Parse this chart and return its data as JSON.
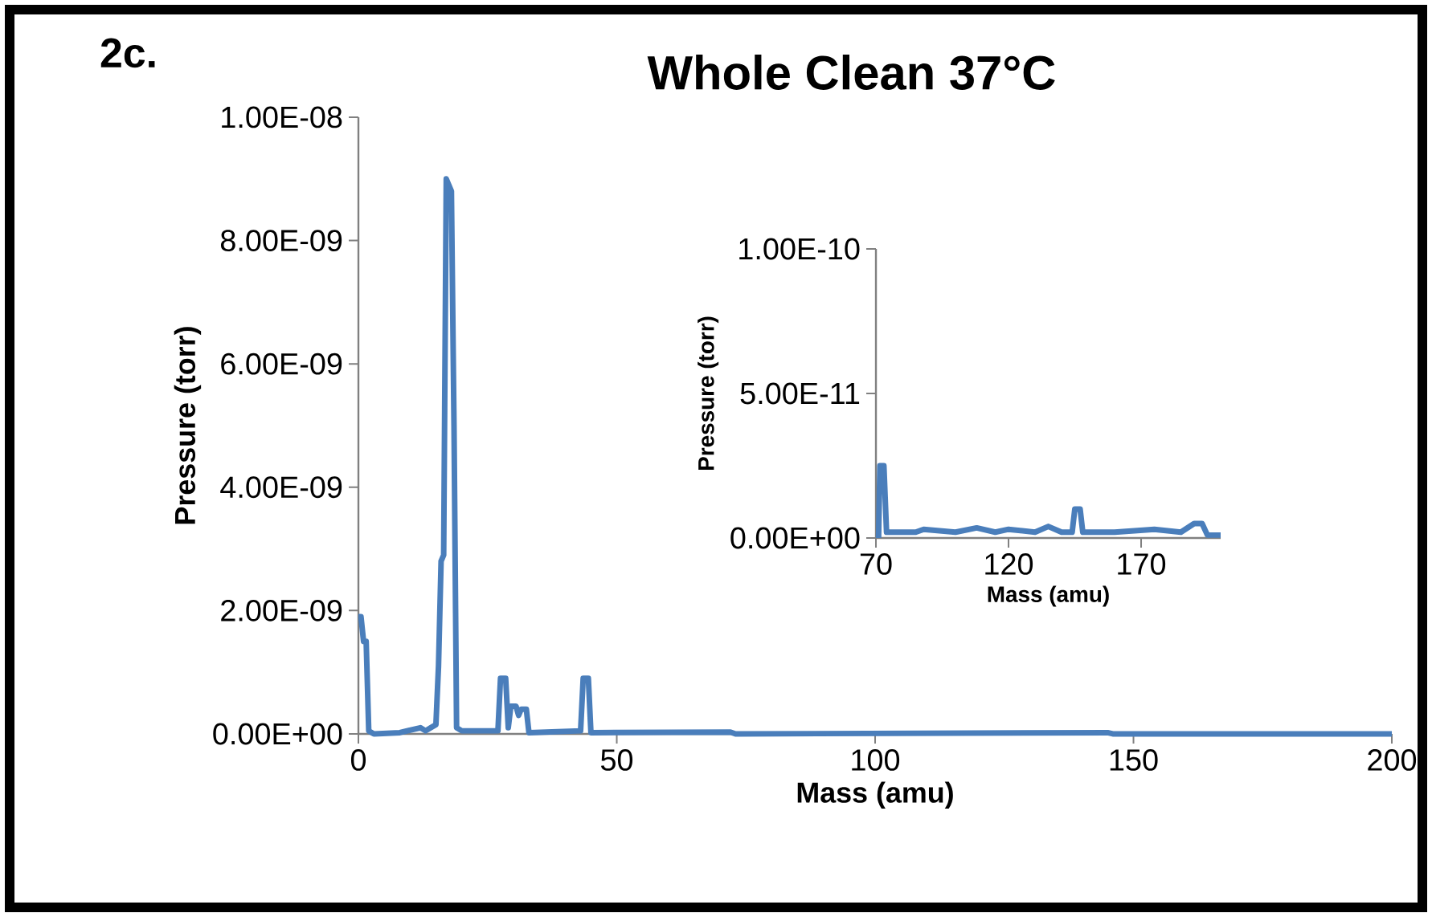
{
  "chart_data": [
    {
      "type": "line",
      "title": "Whole Clean 37°C",
      "annotations": [
        "2c."
      ],
      "xlabel": "Mass (amu)",
      "ylabel": "Pressure (torr)",
      "xlim": [
        0,
        200
      ],
      "ylim": [
        0,
        1e-08
      ],
      "xticks": [
        0,
        50,
        100,
        150,
        200
      ],
      "yticks": [
        {
          "value": 0,
          "label": "0.00E+00"
        },
        {
          "value": 2e-09,
          "label": "2.00E-09"
        },
        {
          "value": 4e-09,
          "label": "4.00E-09"
        },
        {
          "value": 6e-09,
          "label": "6.00E-09"
        },
        {
          "value": 8e-09,
          "label": "8.00E-09"
        },
        {
          "value": 1e-08,
          "label": "1.00E-08"
        }
      ],
      "line_style": "solid",
      "x": [
        0,
        0.5,
        1,
        1.5,
        2,
        3,
        8,
        12,
        13,
        14,
        15,
        15.5,
        16,
        16.5,
        17,
        18,
        18.5,
        19,
        20,
        27,
        27.5,
        28.5,
        29,
        29.5,
        30.5,
        31,
        31.5,
        32.5,
        33,
        43,
        43.5,
        44.5,
        45,
        72,
        73,
        145,
        146,
        200
      ],
      "series": [
        {
          "color": "#4a7ebb",
          "values": [
            1.9e-09,
            1.9e-09,
            1.5e-09,
            1.5e-09,
            5e-11,
            0,
            2e-11,
            1e-10,
            5e-11,
            1e-10,
            1.5e-10,
            1.1e-09,
            2.8e-09,
            2.9e-09,
            9e-09,
            8.8e-09,
            5e-09,
            1e-10,
            5e-11,
            5e-11,
            9e-10,
            9e-10,
            1e-10,
            4.5e-10,
            4.5e-10,
            3e-10,
            4e-10,
            4e-10,
            2e-11,
            5e-11,
            9e-10,
            9e-10,
            2e-11,
            3e-11,
            0,
            2e-11,
            0,
            0
          ]
        }
      ]
    },
    {
      "type": "line",
      "xlabel": "Mass (amu)",
      "ylabel": "Pressure (torr)",
      "xlim": [
        70,
        200
      ],
      "ylim": [
        0,
        1e-10
      ],
      "xticks": [
        70,
        120,
        170
      ],
      "yticks": [
        {
          "value": 0,
          "label": "0.00E+00"
        },
        {
          "value": 5e-11,
          "label": "5.00E-11"
        },
        {
          "value": 1e-10,
          "label": "1.00E-10"
        }
      ],
      "line_style": "solid",
      "x": [
        71,
        71.5,
        73,
        74,
        85,
        88,
        100,
        108,
        115,
        120,
        130,
        135,
        140,
        144,
        145,
        147,
        148,
        160,
        175,
        185,
        190,
        193,
        195,
        200
      ],
      "series": [
        {
          "color": "#4a7ebb",
          "values": [
            0,
            2.5e-11,
            2.5e-11,
            2e-12,
            2e-12,
            3e-12,
            2e-12,
            3.5e-12,
            2e-12,
            3e-12,
            2e-12,
            4e-12,
            2e-12,
            2e-12,
            1e-11,
            1e-11,
            2e-12,
            2e-12,
            3e-12,
            2e-12,
            5e-12,
            5e-12,
            1e-12,
            1e-12
          ]
        }
      ]
    }
  ]
}
